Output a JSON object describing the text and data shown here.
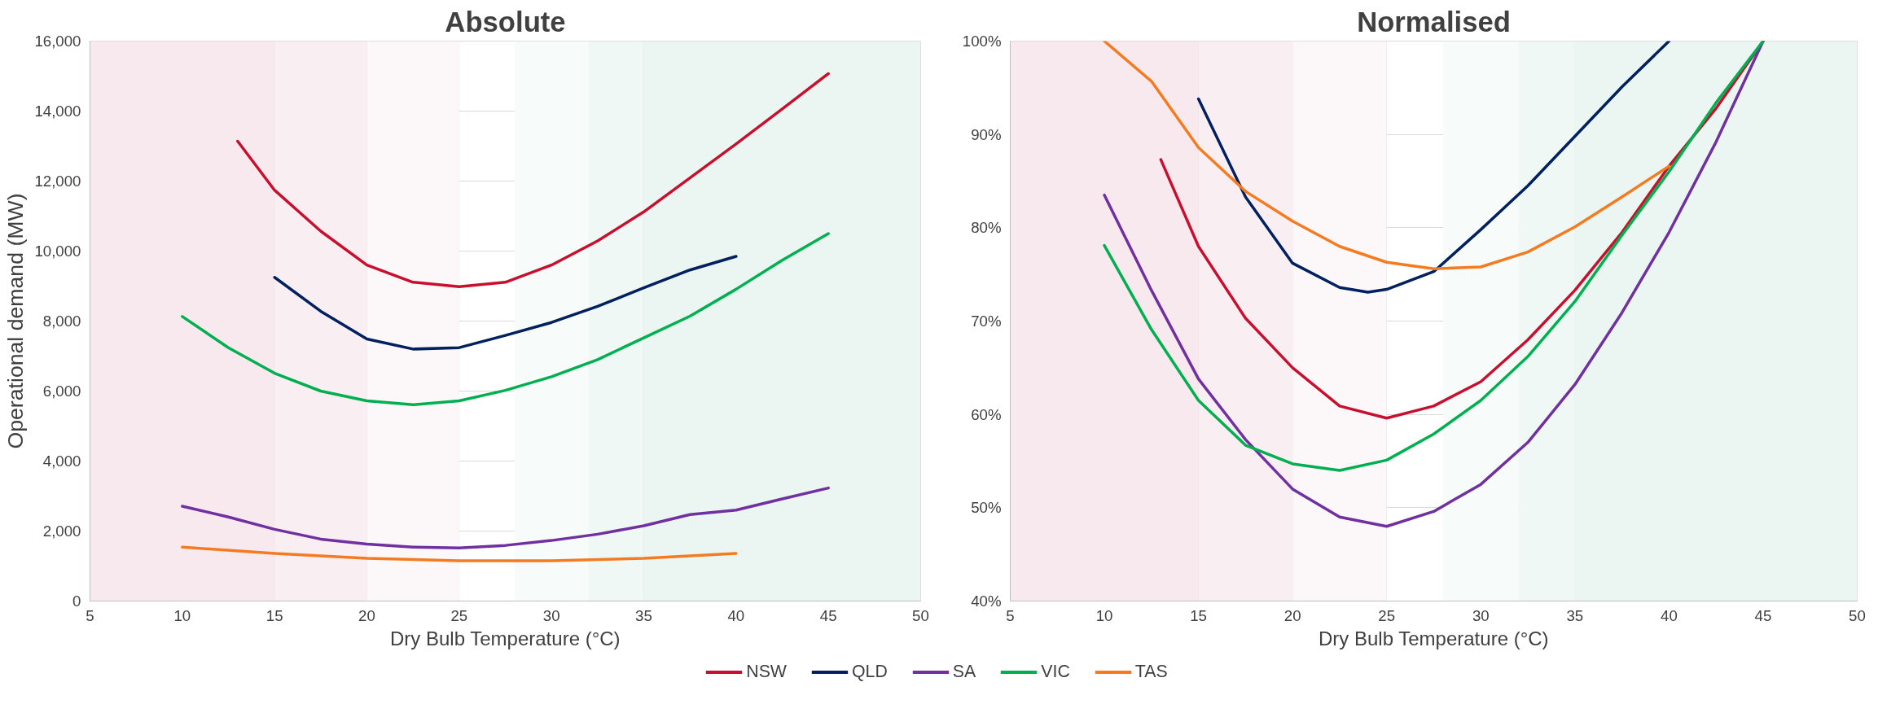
{
  "chart_data": [
    {
      "type": "line",
      "title": "Absolute",
      "xlabel": "Dry Bulb Temperature (°C)",
      "ylabel": "Operational demand (MW)",
      "xlim": [
        5,
        50
      ],
      "xticks": [
        5,
        10,
        15,
        20,
        25,
        30,
        35,
        40,
        45,
        50
      ],
      "ylim": [
        0,
        16000
      ],
      "yticks": [
        0,
        {
          "value": 2000,
          "label": "2,000"
        },
        {
          "value": 4000,
          "label": "4,000"
        },
        {
          "value": 6000,
          "label": "6,000"
        },
        {
          "value": 8000,
          "label": "8,000"
        },
        {
          "value": 10000,
          "label": "10,000"
        },
        {
          "value": 12000,
          "label": "12,000"
        },
        {
          "value": 14000,
          "label": "14,000"
        },
        {
          "value": 16000,
          "label": "16,000"
        }
      ],
      "grid": true,
      "legend": "bottom",
      "line_style": "solid",
      "marker": "none",
      "bands": [
        {
          "axis": "x",
          "from": 5,
          "to": 15,
          "color": "#f8e9ee"
        },
        {
          "axis": "x",
          "from": 15,
          "to": 20,
          "color": "#f9eef2"
        },
        {
          "axis": "x",
          "from": 20,
          "to": 25,
          "color": "#fcf7f9"
        },
        {
          "axis": "x",
          "from": 28,
          "to": 32,
          "color": "#f7fbfa"
        },
        {
          "axis": "x",
          "from": 32,
          "to": 35,
          "color": "#f0f8f6"
        },
        {
          "axis": "x",
          "from": 35,
          "to": 50,
          "color": "#ebf5f2"
        }
      ],
      "series": [
        {
          "name": "NSW",
          "color": "#c8102e",
          "x": [
            13,
            15,
            17.5,
            20,
            22.5,
            25,
            27.5,
            30,
            32.5,
            35,
            37.5,
            40,
            42.5,
            45
          ],
          "values": [
            13140,
            11740,
            10570,
            9600,
            9110,
            8980,
            9110,
            9600,
            10290,
            11120,
            12090,
            13060,
            14060,
            15070
          ]
        },
        {
          "name": "QLD",
          "color": "#002060",
          "x": [
            15,
            17.5,
            20,
            22.5,
            25,
            27.5,
            30,
            32.5,
            35,
            37.5,
            40
          ],
          "values": [
            9250,
            8280,
            7490,
            7200,
            7240,
            7590,
            7960,
            8420,
            8950,
            9460,
            9850
          ]
        },
        {
          "name": "SA",
          "color": "#7030a0",
          "x": [
            10,
            12.5,
            15,
            17.5,
            20,
            22.5,
            25,
            27.5,
            30,
            32.5,
            35,
            37.5,
            40,
            42.5,
            45
          ],
          "values": [
            2710,
            2400,
            2050,
            1770,
            1630,
            1540,
            1520,
            1590,
            1730,
            1910,
            2150,
            2470,
            2600,
            2920,
            3230
          ]
        },
        {
          "name": "VIC",
          "color": "#00b050",
          "x": [
            10,
            12.5,
            15,
            17.5,
            20,
            22.5,
            25,
            27.5,
            30,
            32.5,
            35,
            37.5,
            40,
            42.5,
            45
          ],
          "values": [
            8130,
            7240,
            6510,
            6000,
            5720,
            5610,
            5720,
            6020,
            6410,
            6900,
            7520,
            8140,
            8910,
            9740,
            10500
          ]
        },
        {
          "name": "TAS",
          "color": "#f47b20",
          "x": [
            10,
            15,
            20,
            25,
            30,
            35,
            40
          ],
          "values": [
            1540,
            1360,
            1220,
            1150,
            1150,
            1220,
            1360
          ]
        }
      ]
    },
    {
      "type": "line",
      "title": "Normalised",
      "xlabel": "Dry Bulb Temperature (°C)",
      "xlim": [
        5,
        50
      ],
      "xticks": [
        5,
        10,
        15,
        20,
        25,
        30,
        35,
        40,
        45,
        50
      ],
      "ylim": [
        40,
        100
      ],
      "yticks": [
        {
          "value": 40,
          "label": "40%"
        },
        {
          "value": 50,
          "label": "50%"
        },
        {
          "value": 60,
          "label": "60%"
        },
        {
          "value": 70,
          "label": "70%"
        },
        {
          "value": 80,
          "label": "80%"
        },
        {
          "value": 90,
          "label": "90%"
        },
        {
          "value": 100,
          "label": "100%"
        }
      ],
      "grid": true,
      "line_style": "solid",
      "marker": "none",
      "bands": [
        {
          "axis": "x",
          "from": 5,
          "to": 15,
          "color": "#f8e9ee"
        },
        {
          "axis": "x",
          "from": 15,
          "to": 20,
          "color": "#f9eef2"
        },
        {
          "axis": "x",
          "from": 20,
          "to": 25,
          "color": "#fcf7f9"
        },
        {
          "axis": "x",
          "from": 28,
          "to": 32,
          "color": "#f7fbfa"
        },
        {
          "axis": "x",
          "from": 32,
          "to": 35,
          "color": "#f0f8f6"
        },
        {
          "axis": "x",
          "from": 35,
          "to": 50,
          "color": "#ebf5f2"
        }
      ],
      "series": [
        {
          "color": "#c8102e",
          "x": [
            13,
            15,
            17.5,
            20,
            22.5,
            25,
            27.5,
            30,
            32.5,
            35,
            37.5,
            40,
            42.5,
            45
          ],
          "values": [
            87.3,
            78.0,
            70.3,
            65.0,
            60.9,
            59.6,
            60.9,
            63.5,
            68.0,
            73.3,
            79.5,
            86.6,
            92.8,
            100
          ]
        },
        {
          "color": "#002060",
          "x": [
            15,
            17.5,
            20,
            22.5,
            24,
            25,
            27.5,
            30,
            32.5,
            35,
            37.5,
            40
          ],
          "values": [
            93.8,
            83.3,
            76.2,
            73.6,
            73.1,
            73.4,
            75.3,
            79.8,
            84.5,
            89.8,
            95.1,
            100
          ]
        },
        {
          "color": "#7030a0",
          "x": [
            10,
            12.5,
            15,
            17.5,
            20,
            22.5,
            25,
            27.5,
            30,
            32.5,
            35,
            37.5,
            40,
            42.5,
            45
          ],
          "values": [
            83.5,
            73.3,
            63.8,
            57.3,
            52.0,
            49.0,
            48.0,
            49.6,
            52.5,
            57.0,
            63.2,
            70.9,
            79.5,
            89.2,
            100
          ]
        },
        {
          "color": "#00b050",
          "x": [
            10,
            12.5,
            15,
            17.5,
            20,
            22.5,
            25,
            27.5,
            30,
            32.5,
            35,
            37.5,
            40,
            42.5,
            45
          ],
          "values": [
            78.1,
            69.1,
            61.5,
            56.7,
            54.7,
            54.0,
            55.1,
            57.9,
            61.5,
            66.2,
            72.1,
            79.2,
            86.0,
            93.4,
            100
          ]
        },
        {
          "color": "#f47b20",
          "x": [
            10,
            12.5,
            15,
            17.5,
            20,
            22.5,
            25,
            27.5,
            30,
            32.5,
            35,
            37.5,
            40
          ],
          "values": [
            100,
            95.7,
            88.6,
            83.9,
            80.7,
            78.0,
            76.3,
            75.6,
            75.8,
            77.4,
            80.1,
            83.3,
            86.6
          ]
        }
      ]
    }
  ]
}
